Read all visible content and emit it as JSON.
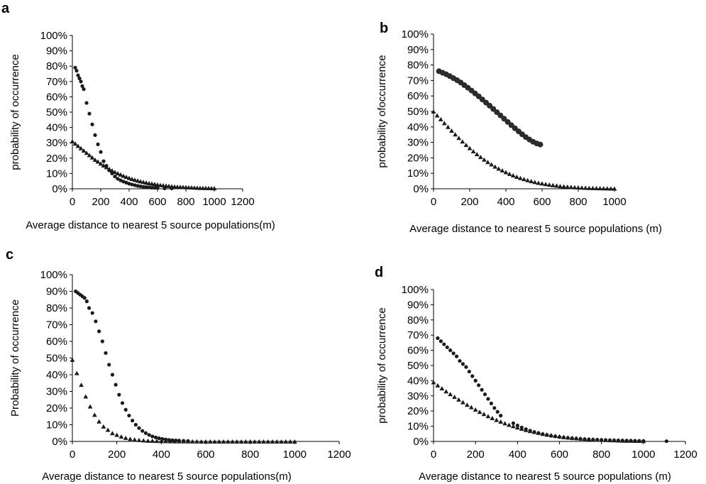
{
  "chart_data": [
    {
      "panel": "a",
      "type": "scatter",
      "title": "",
      "xlabel": "Average distance to nearest 5 source populations(m)",
      "ylabel": "probability of occurrence",
      "xlim": [
        0,
        1200
      ],
      "ylim": [
        0,
        100
      ],
      "x_ticks": [
        "0",
        "200",
        "400",
        "600",
        "800",
        "1000",
        "1200"
      ],
      "y_ticks": [
        "0%",
        "10%",
        "20%",
        "30%",
        "40%",
        "50%",
        "60%",
        "70%",
        "80%",
        "90%",
        "100%"
      ],
      "grid": false,
      "series": [
        {
          "marker": "circle",
          "color": "#1a1a1a",
          "x": [
            20,
            30,
            40,
            50,
            60,
            70,
            80,
            100,
            120,
            140,
            160,
            180,
            200,
            220,
            240,
            260,
            280,
            300,
            320,
            340,
            360,
            380,
            400,
            420,
            440,
            460,
            480,
            500,
            520,
            540,
            560,
            580,
            600,
            650,
            700
          ],
          "y": [
            79,
            77,
            74,
            72,
            70,
            67,
            65,
            56,
            49,
            42,
            35,
            29,
            24,
            18,
            15,
            12,
            10,
            8,
            6.5,
            5.5,
            4.7,
            4,
            3.3,
            2.8,
            2.3,
            1.9,
            1.6,
            1.3,
            1.1,
            0.9,
            0.7,
            0.6,
            0.5,
            0.3,
            0.2
          ]
        },
        {
          "marker": "triangle",
          "color": "#1a1a1a",
          "x": [
            0,
            20,
            40,
            60,
            80,
            100,
            120,
            140,
            160,
            180,
            200,
            220,
            240,
            260,
            280,
            300,
            320,
            340,
            360,
            380,
            400,
            420,
            440,
            460,
            480,
            500,
            520,
            540,
            560,
            580,
            600,
            620,
            640,
            660,
            680,
            700,
            720,
            740,
            760,
            780,
            800,
            820,
            840,
            860,
            880,
            900,
            920,
            940,
            960,
            980,
            1000
          ],
          "y": [
            31,
            29.5,
            28,
            26.5,
            25,
            23.5,
            22,
            20.5,
            19,
            17.8,
            16.5,
            15.3,
            14.1,
            13,
            12,
            11,
            10.1,
            9.3,
            8.5,
            7.8,
            7.1,
            6.5,
            5.9,
            5.4,
            4.9,
            4.5,
            4.1,
            3.7,
            3.4,
            3.1,
            2.8,
            2.5,
            2.3,
            2.1,
            1.9,
            1.7,
            1.5,
            1.4,
            1.3,
            1.2,
            1.1,
            1,
            0.9,
            0.8,
            0.7,
            0.65,
            0.6,
            0.55,
            0.5,
            0.45,
            0.4
          ]
        }
      ]
    },
    {
      "panel": "b",
      "type": "scatter",
      "title": "",
      "xlabel": "Average distance to nearest 5 source populations (m)",
      "ylabel": "probability ofoccurrence",
      "xlim": [
        0,
        1000
      ],
      "ylim": [
        0,
        100
      ],
      "x_ticks": [
        "0",
        "200",
        "400",
        "600",
        "800",
        "1000"
      ],
      "y_ticks": [
        "0%",
        "10%",
        "20%",
        "30%",
        "40%",
        "50%",
        "60%",
        "70%",
        "80%",
        "90%",
        "100%"
      ],
      "grid": false,
      "series": [
        {
          "marker": "circle",
          "color": "#2b2b2b",
          "x": [
            30,
            50,
            70,
            90,
            110,
            130,
            150,
            170,
            190,
            210,
            230,
            250,
            270,
            290,
            310,
            330,
            350,
            370,
            390,
            410,
            430,
            450,
            470,
            490,
            510,
            530,
            550,
            570,
            590
          ],
          "y": [
            76,
            75,
            74,
            72.8,
            71.5,
            70.2,
            68.7,
            67,
            65.3,
            63.5,
            61.6,
            59.7,
            57.7,
            55.7,
            53.7,
            51.6,
            49.5,
            47.4,
            45.3,
            43.2,
            41.1,
            39.1,
            37.1,
            35.2,
            33.4,
            31.8,
            30.4,
            29.3,
            28.6
          ]
        },
        {
          "marker": "triangle",
          "color": "#1a1a1a",
          "x": [
            0,
            20,
            40,
            60,
            80,
            100,
            120,
            140,
            160,
            180,
            200,
            220,
            240,
            260,
            280,
            300,
            320,
            340,
            360,
            380,
            400,
            420,
            440,
            460,
            480,
            500,
            520,
            540,
            560,
            580,
            600,
            620,
            640,
            660,
            680,
            700,
            720,
            740,
            760,
            780,
            800,
            820,
            840,
            860,
            880,
            900,
            920,
            940,
            960,
            980,
            1000
          ],
          "y": [
            50,
            47.5,
            45,
            42.5,
            40,
            37.6,
            35.2,
            32.9,
            30.6,
            28.4,
            26.3,
            24.3,
            22.4,
            20.6,
            18.9,
            17.3,
            15.8,
            14.4,
            13.1,
            11.9,
            10.8,
            9.7,
            8.7,
            7.8,
            7,
            6.3,
            5.6,
            5,
            4.4,
            3.9,
            3.5,
            3.1,
            2.7,
            2.4,
            2.1,
            1.8,
            1.6,
            1.4,
            1.2,
            1.05,
            0.9,
            0.8,
            0.7,
            0.6,
            0.5,
            0.45,
            0.4,
            0.35,
            0.3,
            0.25,
            0.2
          ]
        }
      ]
    },
    {
      "panel": "c",
      "type": "scatter",
      "title": "",
      "xlabel": "Average distance to nearest 5 source populations(m)",
      "ylabel": "Probability of occurrence",
      "xlim": [
        0,
        1200
      ],
      "ylim": [
        0,
        100
      ],
      "x_ticks": [
        "0",
        "200",
        "400",
        "600",
        "800",
        "1000",
        "1200"
      ],
      "y_ticks": [
        "0%",
        "10%",
        "20%",
        "30%",
        "40%",
        "50%",
        "60%",
        "70%",
        "80%",
        "90%",
        "100%"
      ],
      "grid": false,
      "series": [
        {
          "marker": "circle",
          "color": "#1a1a1a",
          "x": [
            15,
            25,
            35,
            45,
            55,
            65,
            75,
            90,
            105,
            120,
            135,
            150,
            165,
            180,
            195,
            210,
            225,
            240,
            255,
            270,
            285,
            300,
            315,
            330,
            345,
            360,
            375,
            390,
            405,
            420,
            435,
            450,
            465,
            480,
            500,
            520
          ],
          "y": [
            90,
            89,
            88,
            87,
            86,
            84,
            80,
            77,
            72,
            66,
            60,
            53,
            46,
            40,
            34,
            28,
            23,
            19,
            15.5,
            12.5,
            10,
            8,
            6.3,
            5,
            3.9,
            3,
            2.4,
            1.9,
            1.5,
            1.2,
            0.9,
            0.7,
            0.6,
            0.5,
            0.4,
            0.3
          ]
        },
        {
          "marker": "triangle",
          "color": "#1a1a1a",
          "x": [
            0,
            20,
            40,
            60,
            80,
            100,
            120,
            140,
            160,
            180,
            200,
            220,
            240,
            260,
            280,
            300,
            320,
            340,
            360,
            380,
            400,
            420,
            440,
            460,
            480,
            500,
            520,
            540,
            560,
            580,
            600,
            620,
            640,
            660,
            680,
            700,
            720,
            740,
            760,
            780,
            800,
            820,
            840,
            860,
            880,
            900,
            920,
            940,
            960,
            980,
            1000
          ],
          "y": [
            49,
            41,
            34,
            27,
            21,
            16,
            12,
            9,
            7,
            5,
            4,
            3,
            2.2,
            1.6,
            1.2,
            0.9,
            0.7,
            0.5,
            0.4,
            0.3,
            0.25,
            0.2,
            0.15,
            0.1,
            0.1,
            0.1,
            0.05,
            0.05,
            0.05,
            0,
            0,
            0,
            0,
            0,
            0,
            0,
            0,
            0,
            0,
            0,
            0,
            0,
            0,
            0,
            0,
            0,
            0,
            0,
            0,
            0,
            0
          ]
        }
      ]
    },
    {
      "panel": "d",
      "type": "scatter",
      "title": "",
      "xlabel": "Average distance to nearest 5 source populations (m)",
      "ylabel": "probability of occurrence",
      "xlim": [
        0,
        1200
      ],
      "ylim": [
        0,
        100
      ],
      "x_ticks": [
        "0",
        "200",
        "400",
        "600",
        "800",
        "1000",
        "1200"
      ],
      "y_ticks": [
        "0%",
        "10%",
        "20%",
        "30%",
        "40%",
        "50%",
        "60%",
        "70%",
        "80%",
        "90%",
        "100%"
      ],
      "grid": false,
      "series": [
        {
          "marker": "circle",
          "color": "#1a1a1a",
          "x": [
            20,
            35,
            50,
            65,
            80,
            95,
            110,
            125,
            140,
            155,
            170,
            185,
            200,
            215,
            230,
            245,
            260,
            275,
            290,
            305,
            320,
            380,
            400,
            420,
            440,
            460,
            480,
            500,
            520,
            540,
            560,
            580,
            600,
            620,
            640,
            660,
            680,
            700,
            720,
            740,
            760,
            780,
            800,
            820,
            840,
            860,
            880,
            900,
            920,
            940,
            960,
            980,
            1000,
            1110
          ],
          "y": [
            68,
            66,
            64,
            62,
            60,
            58,
            56,
            53,
            51,
            49,
            46,
            43,
            40,
            37,
            34,
            31,
            28,
            25,
            22,
            19.5,
            17,
            12,
            10.5,
            9.2,
            8.1,
            7.1,
            6.2,
            5.5,
            4.8,
            4.2,
            3.7,
            3.3,
            2.9,
            2.6,
            2.3,
            2.05,
            1.85,
            1.65,
            1.5,
            1.35,
            1.2,
            1.1,
            1,
            0.9,
            0.8,
            0.72,
            0.65,
            0.58,
            0.52,
            0.46,
            0.4,
            0.35,
            0.3,
            0.15
          ]
        },
        {
          "marker": "triangle",
          "color": "#1a1a1a",
          "x": [
            0,
            20,
            40,
            60,
            80,
            100,
            120,
            140,
            160,
            180,
            200,
            220,
            240,
            260,
            280,
            300,
            320,
            340,
            360,
            380,
            400,
            420,
            440,
            460,
            480,
            500,
            520,
            540,
            560,
            580,
            600,
            620,
            640,
            660,
            680,
            700,
            720,
            740,
            760,
            780,
            800,
            820,
            840,
            860,
            880,
            900,
            920,
            940,
            960,
            980,
            1000
          ],
          "y": [
            39,
            37,
            35,
            33,
            31.2,
            29.4,
            27.6,
            25.9,
            24.2,
            22.6,
            21,
            19.5,
            18.1,
            16.7,
            15.4,
            14.2,
            13.1,
            12,
            11,
            10.1,
            9.2,
            8.4,
            7.6,
            6.9,
            6.3,
            5.7,
            5.1,
            4.6,
            4.2,
            3.8,
            3.4,
            3,
            2.7,
            2.4,
            2.2,
            2,
            1.8,
            1.6,
            1.4,
            1.25,
            1.1,
            1,
            0.9,
            0.8,
            0.7,
            0.6,
            0.55,
            0.5,
            0.45,
            0.4,
            0.35
          ]
        }
      ]
    }
  ]
}
